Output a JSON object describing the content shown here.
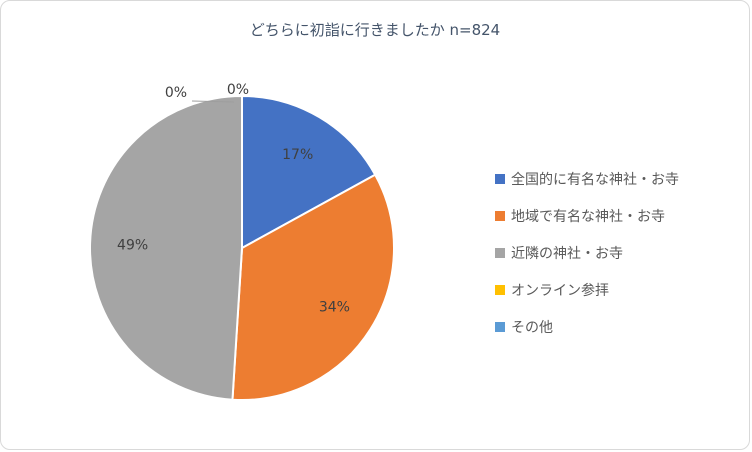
{
  "chart_data": {
    "type": "pie",
    "title": "どちらに初詣に行きましたか n=824",
    "categories": [
      "全国的に有名な神社・お寺",
      "地域で有名な神社・お寺",
      "近隣の神社・お寺",
      "オンライン参拝",
      "その他"
    ],
    "values": [
      17,
      34,
      49,
      0,
      0
    ],
    "labels": [
      "17%",
      "34%",
      "49%",
      "0%",
      "0%"
    ],
    "unit": "%",
    "colors": [
      "#4472C4",
      "#ED7D31",
      "#A5A5A5",
      "#FFC000",
      "#5B9BD5"
    ],
    "legend_position": "right",
    "start_angle_deg": 0,
    "direction": "clockwise",
    "label_color": "#404040",
    "title_color": "#44546A",
    "legend_text_color": "#595959",
    "slice_border_color": "#ffffff"
  }
}
